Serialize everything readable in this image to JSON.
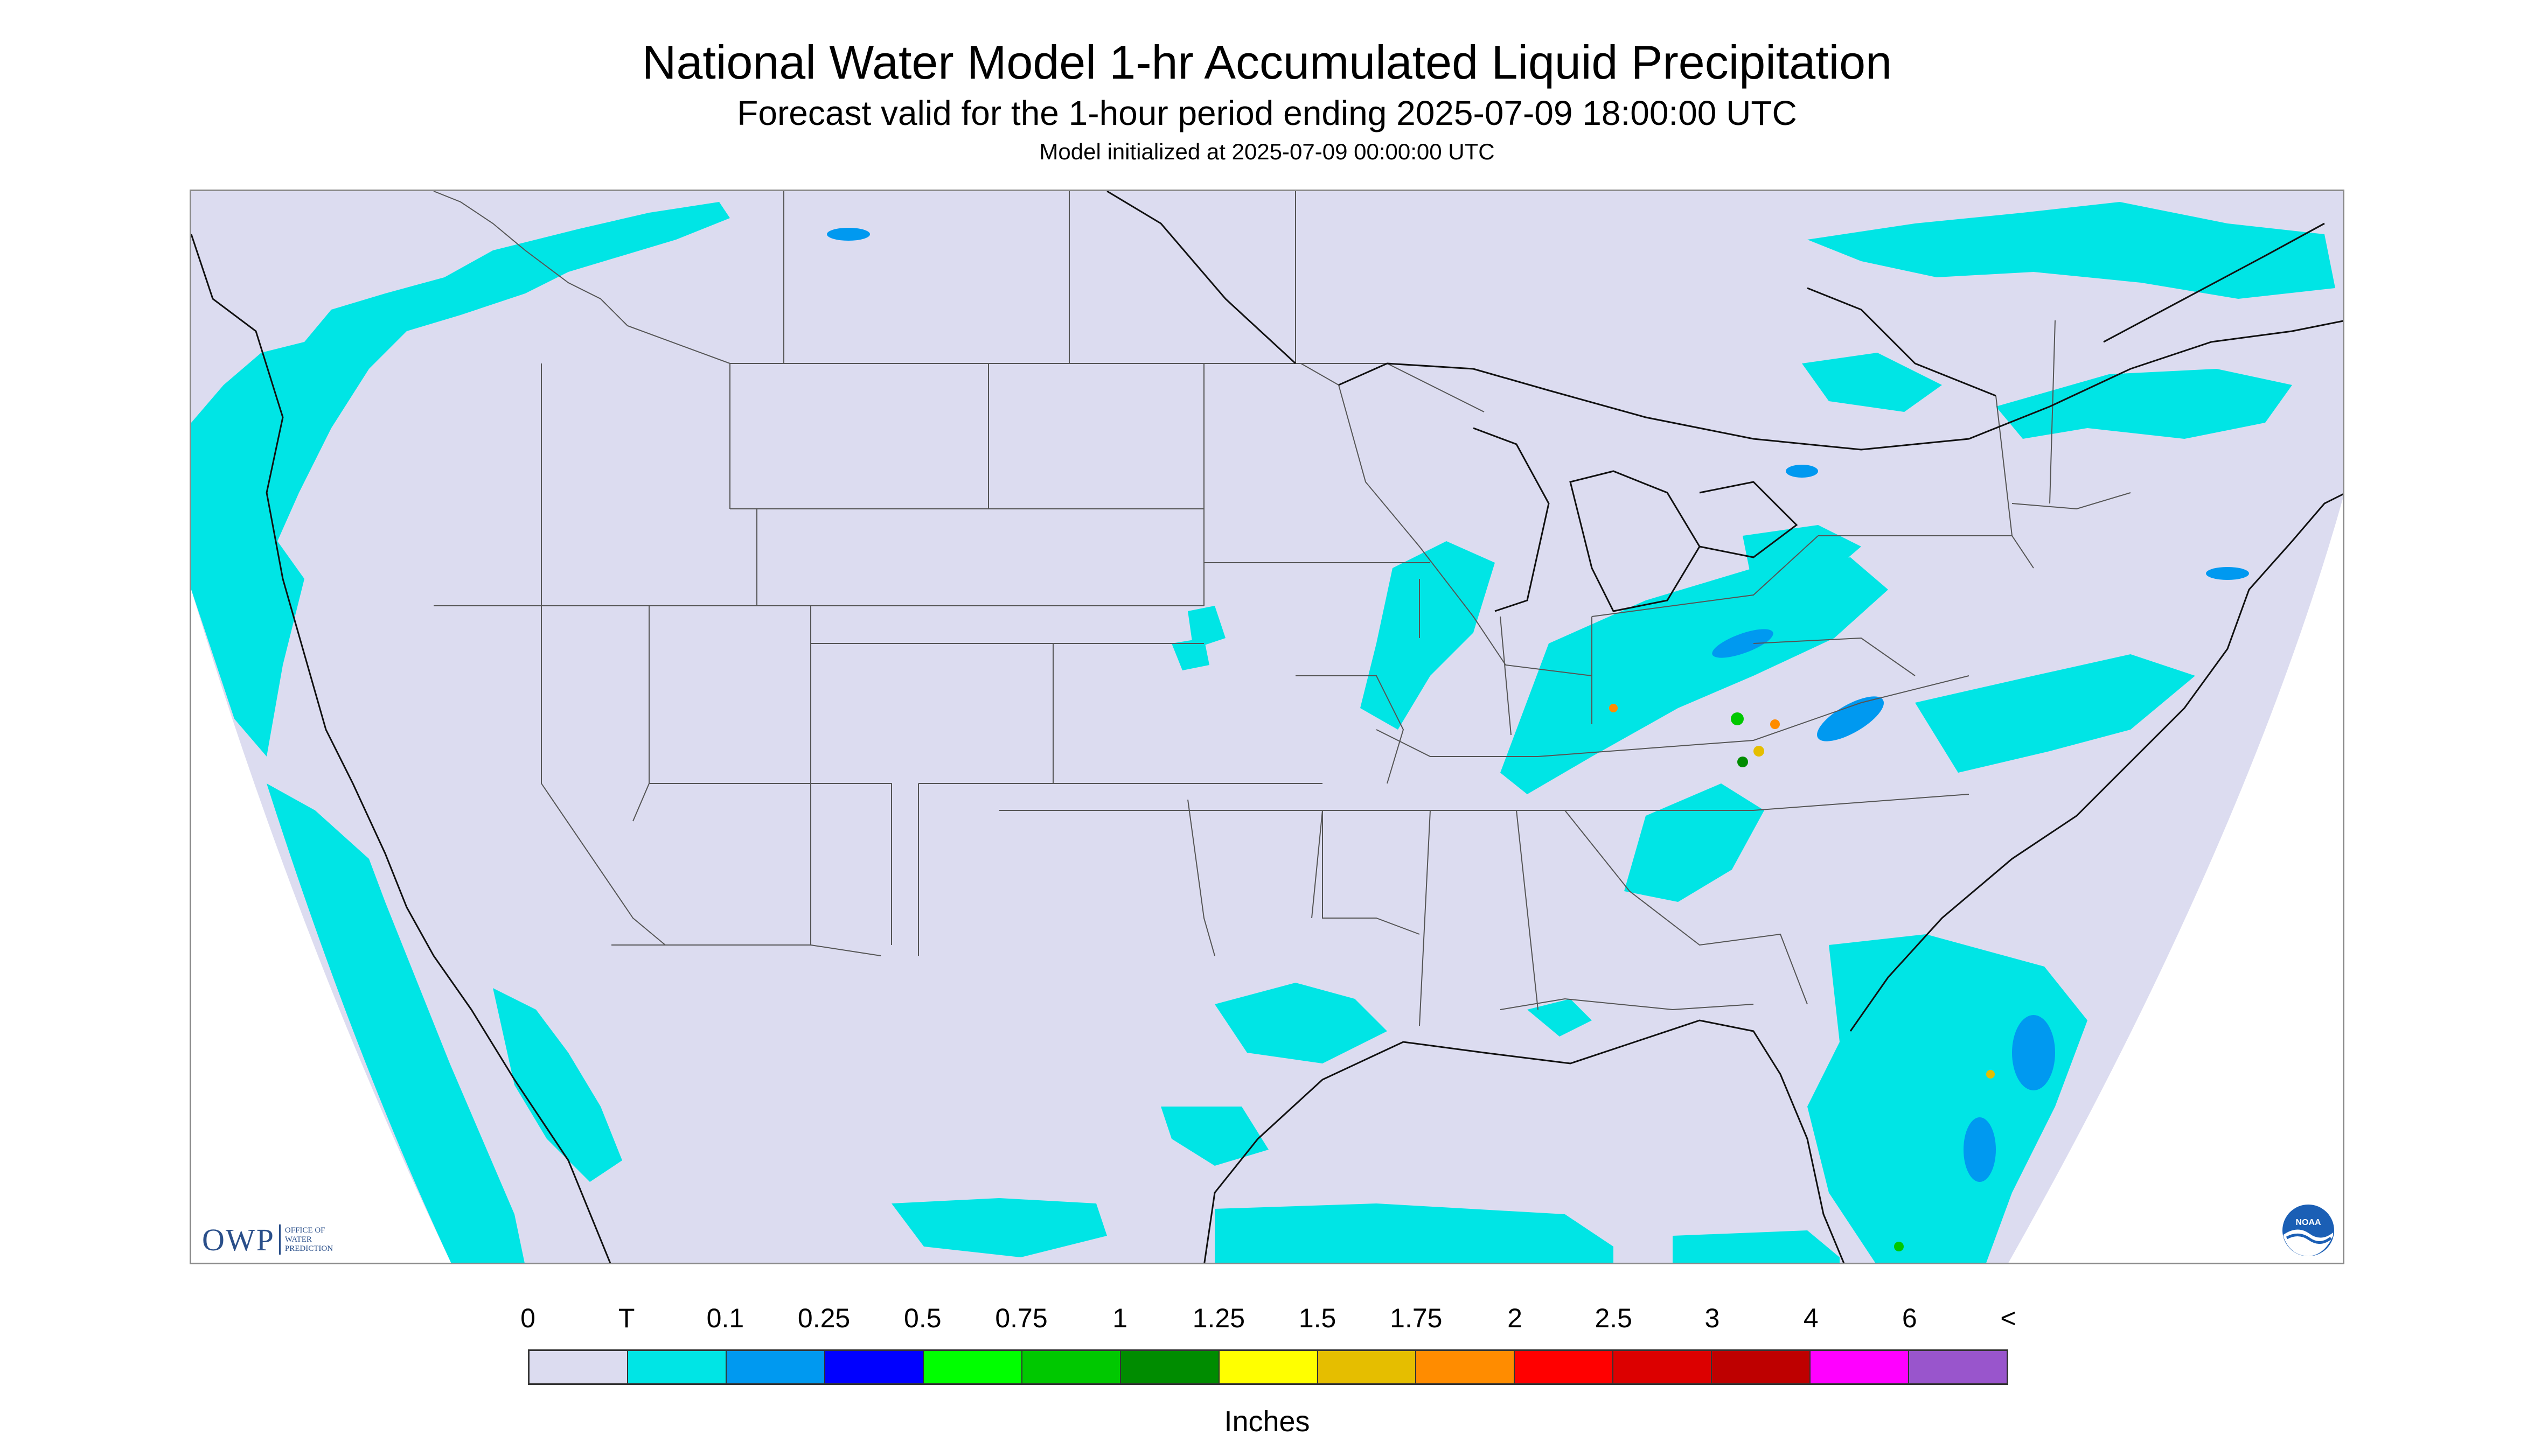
{
  "header": {
    "title": "National Water Model 1-hr Accumulated Liquid Precipitation",
    "subtitle": "Forecast valid for the 1-hour period ending 2025-07-09 18:00:00 UTC",
    "init_line": "Model initialized at 2025-07-09 00:00:00 UTC"
  },
  "map": {
    "region": "CONUS",
    "background_color": "#dcdcf0",
    "boundary_color": "#555555",
    "coast_color": "#111111"
  },
  "logos": {
    "owp_mark": "OWP",
    "owp_text_lines": [
      "OFFICE OF",
      "WATER",
      "PREDICTION"
    ],
    "noaa_text": "NOAA"
  },
  "legend": {
    "labels": [
      "0",
      "T",
      "0.1",
      "0.25",
      "0.5",
      "0.75",
      "1",
      "1.25",
      "1.5",
      "1.75",
      "2",
      "2.5",
      "3",
      "4",
      "6",
      "<"
    ],
    "colors": [
      "#dcdcf0",
      "#00e5e5",
      "#0099f0",
      "#0000ff",
      "#00ff00",
      "#00c800",
      "#008c00",
      "#ffff00",
      "#e5be00",
      "#ff8c00",
      "#ff0000",
      "#dc0000",
      "#be0000",
      "#ff00ff",
      "#9955cc"
    ],
    "units": "Inches"
  }
}
